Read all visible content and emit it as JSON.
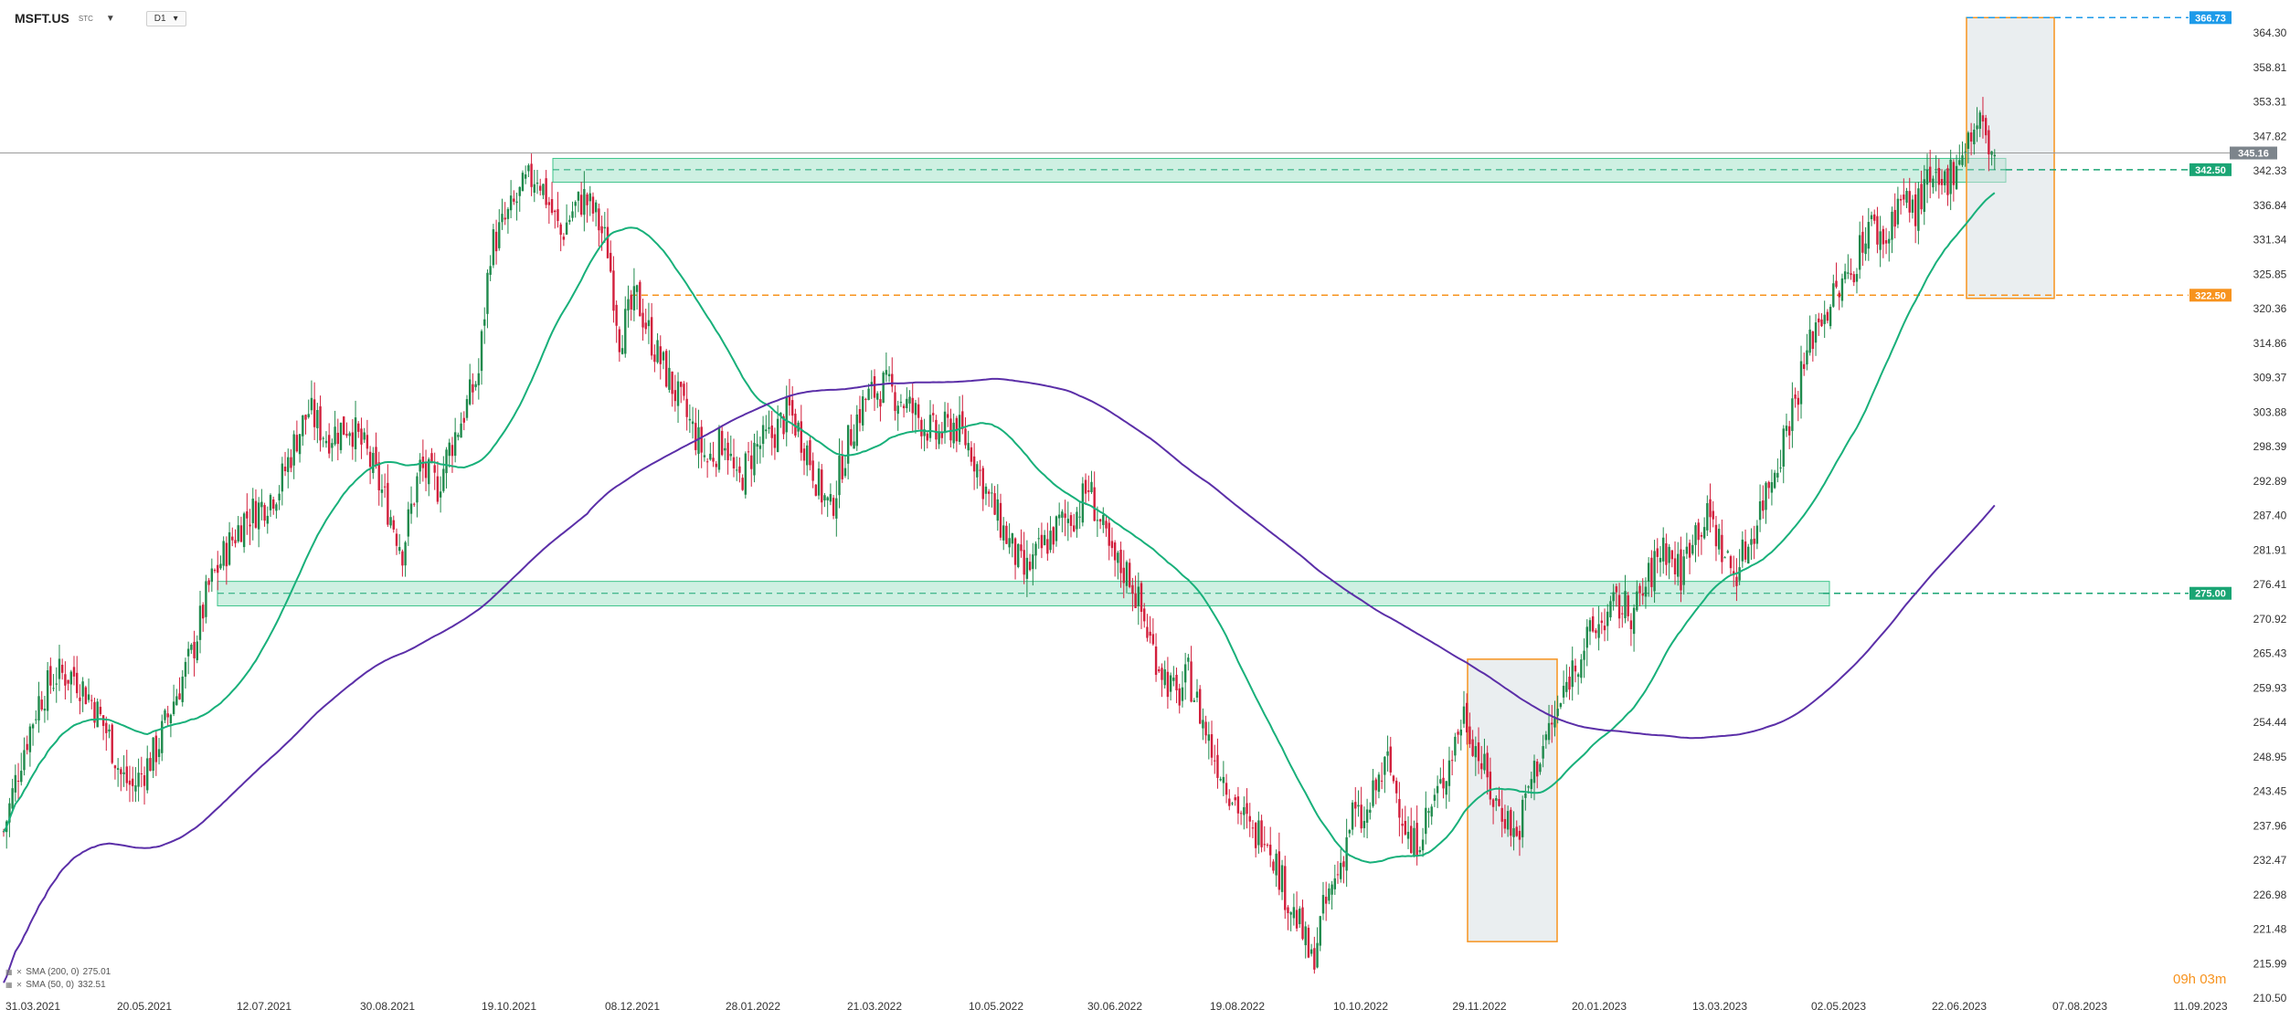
{
  "header": {
    "symbol": "MSFT.US",
    "symbol_sub": "STC",
    "timeframe": "D1"
  },
  "legend": [
    {
      "label": "SMA (200, 0)",
      "value": "275.01",
      "color": "#5b2fa8"
    },
    {
      "label": "SMA (50, 0)",
      "value": "332.51",
      "color": "#18b07a"
    }
  ],
  "timer": "09h 03m",
  "colors": {
    "up": "#1f8a4c",
    "down": "#d21f3c",
    "sma50": "#18b07a",
    "sma200": "#5b2fa8",
    "zone": "#3cc48a",
    "orange": "#f7931e",
    "blue": "#1e9be9"
  },
  "chart_data": {
    "type": "candlestick",
    "symbol": "MSFT.US",
    "timeframe": "D1",
    "ylim": [
      210.5,
      367.5
    ],
    "y_ticks": [
      "364.30",
      "358.81",
      "353.31",
      "347.82",
      "342.33",
      "336.84",
      "331.34",
      "325.85",
      "320.36",
      "314.86",
      "309.37",
      "303.88",
      "298.39",
      "292.89",
      "287.40",
      "281.91",
      "276.41",
      "270.92",
      "265.43",
      "259.93",
      "254.44",
      "248.95",
      "243.45",
      "237.96",
      "232.47",
      "226.98",
      "221.48",
      "215.99",
      "210.50"
    ],
    "x_ticks": [
      "31.03.2021",
      "20.05.2021",
      "12.07.2021",
      "30.08.2021",
      "19.10.2021",
      "08.12.2021",
      "28.01.2022",
      "21.03.2022",
      "10.05.2022",
      "30.06.2022",
      "19.08.2022",
      "10.10.2022",
      "29.11.2022",
      "20.01.2023",
      "13.03.2023",
      "02.05.2023",
      "22.06.2023",
      "07.08.2023",
      "11.09.2023"
    ],
    "current_price": "345.16",
    "levels": [
      {
        "label": "366.73",
        "value": 366.73,
        "color": "blue"
      },
      {
        "label": "342.50",
        "value": 342.5,
        "color": "green"
      },
      {
        "label": "322.50",
        "value": 322.5,
        "color": "orange"
      },
      {
        "label": "275.00",
        "value": 275.0,
        "color": "green"
      }
    ],
    "close_path": [
      [
        0,
        237
      ],
      [
        6,
        249
      ],
      [
        12,
        258
      ],
      [
        18,
        262
      ],
      [
        24,
        262
      ],
      [
        30,
        258
      ],
      [
        36,
        252
      ],
      [
        40,
        246
      ],
      [
        44,
        244
      ],
      [
        52,
        250
      ],
      [
        58,
        258
      ],
      [
        64,
        265
      ],
      [
        70,
        276
      ],
      [
        76,
        282
      ],
      [
        82,
        287
      ],
      [
        88,
        289
      ],
      [
        94,
        292
      ],
      [
        100,
        300
      ],
      [
        104,
        304
      ],
      [
        110,
        300
      ],
      [
        118,
        302
      ],
      [
        124,
        297
      ],
      [
        130,
        290
      ],
      [
        136,
        282
      ],
      [
        142,
        295
      ],
      [
        148,
        292
      ],
      [
        152,
        298
      ],
      [
        158,
        305
      ],
      [
        162,
        310
      ],
      [
        166,
        330
      ],
      [
        172,
        335
      ],
      [
        178,
        340
      ],
      [
        182,
        342
      ],
      [
        186,
        337
      ],
      [
        190,
        332
      ],
      [
        194,
        336
      ],
      [
        198,
        338
      ],
      [
        202,
        335
      ],
      [
        206,
        330
      ],
      [
        210,
        316
      ],
      [
        216,
        322
      ],
      [
        222,
        314
      ],
      [
        228,
        308
      ],
      [
        234,
        302
      ],
      [
        240,
        296
      ],
      [
        246,
        300
      ],
      [
        250,
        292
      ],
      [
        256,
        298
      ],
      [
        262,
        300
      ],
      [
        268,
        304
      ],
      [
        274,
        298
      ],
      [
        278,
        292
      ],
      [
        282,
        288
      ],
      [
        286,
        296
      ],
      [
        290,
        302
      ],
      [
        294,
        306
      ],
      [
        300,
        308
      ],
      [
        306,
        306
      ],
      [
        312,
        303
      ],
      [
        318,
        300
      ],
      [
        324,
        302
      ],
      [
        330,
        298
      ],
      [
        336,
        290
      ],
      [
        342,
        284
      ],
      [
        348,
        278
      ],
      [
        354,
        282
      ],
      [
        360,
        286
      ],
      [
        366,
        288
      ],
      [
        370,
        292
      ],
      [
        374,
        286
      ],
      [
        378,
        280
      ],
      [
        384,
        278
      ],
      [
        388,
        272
      ],
      [
        392,
        266
      ],
      [
        396,
        262
      ],
      [
        400,
        258
      ],
      [
        404,
        262
      ],
      [
        408,
        256
      ],
      [
        412,
        250
      ],
      [
        416,
        246
      ],
      [
        420,
        242
      ],
      [
        426,
        236
      ],
      [
        430,
        238
      ],
      [
        434,
        232
      ],
      [
        438,
        226
      ],
      [
        442,
        222
      ],
      [
        446,
        216
      ],
      [
        450,
        224
      ],
      [
        456,
        232
      ],
      [
        460,
        240
      ],
      [
        464,
        238
      ],
      [
        468,
        244
      ],
      [
        472,
        248
      ],
      [
        476,
        242
      ],
      [
        480,
        234
      ],
      [
        486,
        240
      ],
      [
        490,
        244
      ],
      [
        494,
        250
      ],
      [
        498,
        256
      ],
      [
        504,
        248
      ],
      [
        508,
        242
      ],
      [
        512,
        240
      ],
      [
        516,
        236
      ],
      [
        520,
        244
      ],
      [
        526,
        252
      ],
      [
        530,
        256
      ],
      [
        534,
        262
      ],
      [
        538,
        266
      ],
      [
        544,
        270
      ],
      [
        550,
        273
      ],
      [
        556,
        272
      ],
      [
        560,
        276
      ],
      [
        566,
        283
      ],
      [
        572,
        278
      ],
      [
        576,
        285
      ],
      [
        582,
        287
      ],
      [
        586,
        282
      ],
      [
        590,
        278
      ],
      [
        596,
        284
      ],
      [
        600,
        290
      ],
      [
        606,
        298
      ],
      [
        612,
        308
      ],
      [
        618,
        318
      ],
      [
        624,
        322
      ],
      [
        630,
        326
      ],
      [
        636,
        334
      ],
      [
        642,
        331
      ],
      [
        646,
        338
      ],
      [
        652,
        336
      ],
      [
        656,
        340
      ],
      [
        660,
        339
      ],
      [
        664,
        342
      ],
      [
        668,
        346
      ],
      [
        674,
        350
      ],
      [
        678,
        345
      ]
    ]
  }
}
